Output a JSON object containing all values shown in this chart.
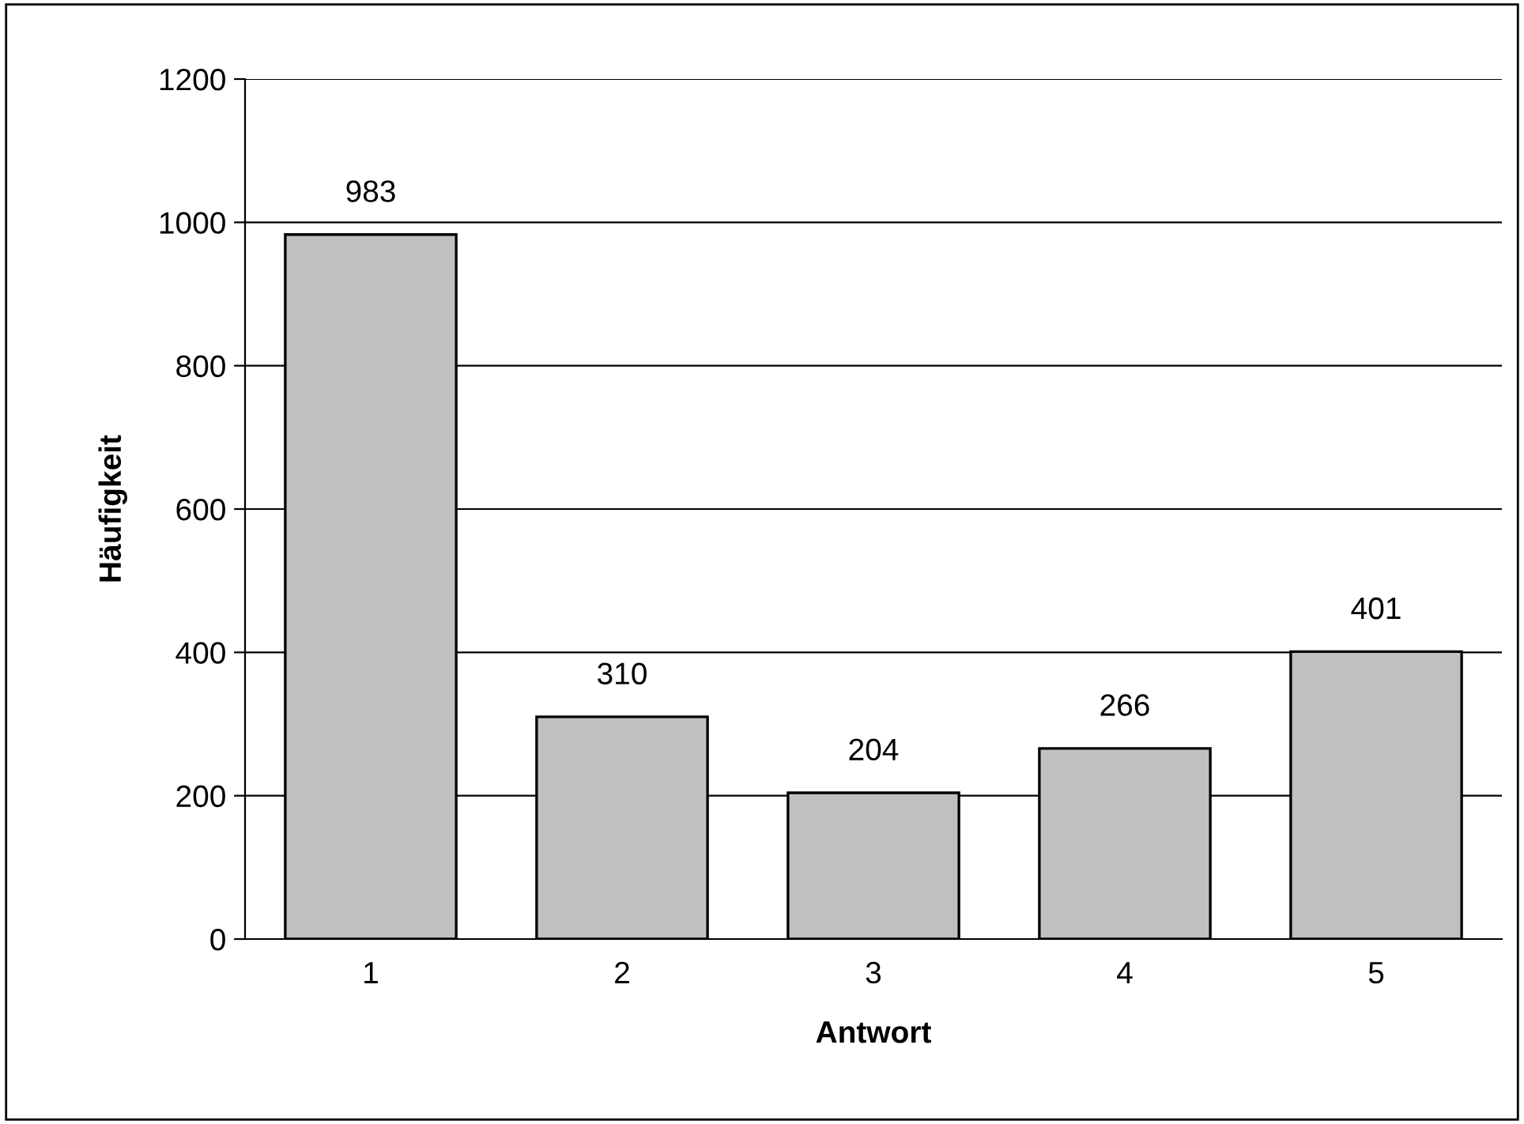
{
  "chart_data": {
    "type": "bar",
    "xlabel": "Antwort",
    "ylabel": "Häufigkeit",
    "categories": [
      "1",
      "2",
      "3",
      "4",
      "5"
    ],
    "values": [
      983,
      310,
      204,
      266,
      401
    ],
    "color": "#c0c0c0",
    "ylim": [
      0,
      1200
    ],
    "yticks": [
      0,
      200,
      400,
      600,
      800,
      1000,
      1200
    ],
    "grid": "y",
    "legend": false,
    "data_labels": true
  }
}
